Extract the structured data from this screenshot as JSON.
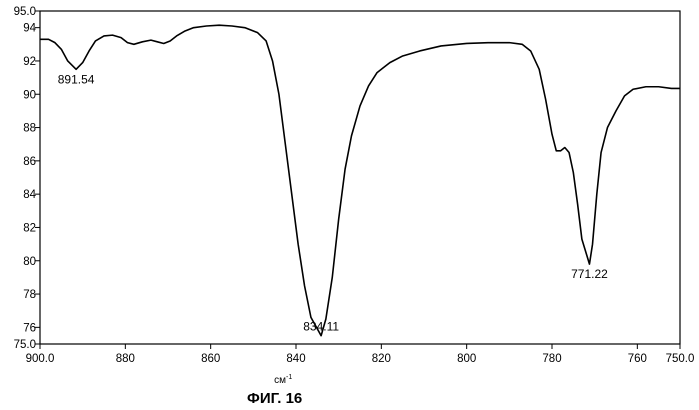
{
  "chart_data": {
    "type": "line",
    "title": "",
    "caption": "ФИГ. 16",
    "xlabel": "см",
    "xlabel_superscript": "-1",
    "ylabel": "",
    "xlim": [
      900.0,
      750.0
    ],
    "ylim": [
      75.0,
      95.0
    ],
    "x_reversed": true,
    "grid": false,
    "x_ticks": [
      {
        "value": 900,
        "label": "900.0"
      },
      {
        "value": 880,
        "label": "880"
      },
      {
        "value": 860,
        "label": "860"
      },
      {
        "value": 840,
        "label": "840"
      },
      {
        "value": 820,
        "label": "820"
      },
      {
        "value": 800,
        "label": "800"
      },
      {
        "value": 780,
        "label": "780"
      },
      {
        "value": 760,
        "label": "760"
      },
      {
        "value": 750,
        "label": "750.0"
      }
    ],
    "y_ticks": [
      {
        "value": 95,
        "label": "95.0"
      },
      {
        "value": 94,
        "label": "94"
      },
      {
        "value": 92,
        "label": "92"
      },
      {
        "value": 90,
        "label": "90"
      },
      {
        "value": 88,
        "label": "88"
      },
      {
        "value": 86,
        "label": "86"
      },
      {
        "value": 84,
        "label": "84"
      },
      {
        "value": 82,
        "label": "82"
      },
      {
        "value": 80,
        "label": "80"
      },
      {
        "value": 78,
        "label": "78"
      },
      {
        "value": 76,
        "label": "76"
      },
      {
        "value": 75,
        "label": "75.0"
      }
    ],
    "series": [
      {
        "color": "#000000",
        "points": [
          [
            900.0,
            93.3
          ],
          [
            898.0,
            93.3
          ],
          [
            896.5,
            93.1
          ],
          [
            895.0,
            92.7
          ],
          [
            893.5,
            92.0
          ],
          [
            891.54,
            91.5
          ],
          [
            890.0,
            91.9
          ],
          [
            888.5,
            92.6
          ],
          [
            887.0,
            93.2
          ],
          [
            885.0,
            93.5
          ],
          [
            883.0,
            93.55
          ],
          [
            881.0,
            93.4
          ],
          [
            879.5,
            93.1
          ],
          [
            878.0,
            93.0
          ],
          [
            876.0,
            93.15
          ],
          [
            874.0,
            93.25
          ],
          [
            872.5,
            93.15
          ],
          [
            871.0,
            93.05
          ],
          [
            869.5,
            93.2
          ],
          [
            868.0,
            93.5
          ],
          [
            866.0,
            93.8
          ],
          [
            864.0,
            94.0
          ],
          [
            861.0,
            94.1
          ],
          [
            858.0,
            94.15
          ],
          [
            855.0,
            94.1
          ],
          [
            852.0,
            94.0
          ],
          [
            849.0,
            93.7
          ],
          [
            847.0,
            93.2
          ],
          [
            845.5,
            92.0
          ],
          [
            844.0,
            90.0
          ],
          [
            842.5,
            87.0
          ],
          [
            841.0,
            84.0
          ],
          [
            839.5,
            81.0
          ],
          [
            838.0,
            78.5
          ],
          [
            836.5,
            76.6
          ],
          [
            834.11,
            75.5
          ],
          [
            833.0,
            76.5
          ],
          [
            831.5,
            79.0
          ],
          [
            830.0,
            82.5
          ],
          [
            828.5,
            85.5
          ],
          [
            827.0,
            87.5
          ],
          [
            825.0,
            89.3
          ],
          [
            823.0,
            90.5
          ],
          [
            821.0,
            91.3
          ],
          [
            818.0,
            91.9
          ],
          [
            815.0,
            92.3
          ],
          [
            811.0,
            92.6
          ],
          [
            806.0,
            92.9
          ],
          [
            800.0,
            93.05
          ],
          [
            795.0,
            93.1
          ],
          [
            790.0,
            93.1
          ],
          [
            787.0,
            93.0
          ],
          [
            785.0,
            92.6
          ],
          [
            783.0,
            91.5
          ],
          [
            781.5,
            89.7
          ],
          [
            780.0,
            87.6
          ],
          [
            779.0,
            86.6
          ],
          [
            778.0,
            86.6
          ],
          [
            777.0,
            86.8
          ],
          [
            776.0,
            86.5
          ],
          [
            775.0,
            85.3
          ],
          [
            774.0,
            83.4
          ],
          [
            773.0,
            81.3
          ],
          [
            771.22,
            79.8
          ],
          [
            770.5,
            81.0
          ],
          [
            769.5,
            84.0
          ],
          [
            768.5,
            86.5
          ],
          [
            767.0,
            88.0
          ],
          [
            765.0,
            89.0
          ],
          [
            763.0,
            89.9
          ],
          [
            761.0,
            90.3
          ],
          [
            758.0,
            90.45
          ],
          [
            755.0,
            90.45
          ],
          [
            752.0,
            90.35
          ],
          [
            750.0,
            90.35
          ]
        ]
      }
    ],
    "annotations": [
      {
        "text": "891.54",
        "x": 891.54,
        "y": 91.5,
        "anchor": "below"
      },
      {
        "text": "834.11",
        "x": 834.11,
        "y": 75.5,
        "anchor": "above"
      },
      {
        "text": "771.22",
        "x": 771.22,
        "y": 79.8,
        "anchor": "below"
      }
    ]
  }
}
